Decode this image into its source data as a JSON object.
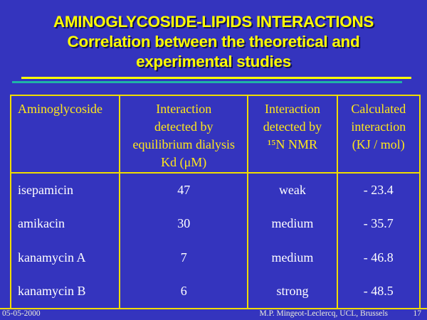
{
  "colors": {
    "bg": "#3434BE",
    "title-yellow": "#FFFF00",
    "border-yellow": "#F0DC00",
    "header-yellow": "#FFE81A",
    "teal": "#1FB3A7",
    "body-text": "#FFFFFF",
    "footer-text": "#EDEDDC"
  },
  "title": {
    "lines": [
      "AMINOGLYCOSIDE-LIPIDS INTERACTIONS",
      "Correlation between the theoretical and",
      "experimental studies"
    ]
  },
  "table": {
    "columns": [
      {
        "lines": [
          "Aminoglycoside"
        ]
      },
      {
        "lines": [
          "Interaction",
          "detected by",
          "equilibrium dialysis",
          "Kd (μM)"
        ]
      },
      {
        "lines": [
          "Interaction",
          "detected by",
          "¹⁵N NMR"
        ]
      },
      {
        "lines": [
          "Calculated",
          "interaction",
          "(KJ / mol)"
        ]
      }
    ],
    "rows": [
      {
        "aminoglycoside": "isepamicin",
        "kd": "47",
        "nmr": "weak",
        "kj": "- 23.4"
      },
      {
        "aminoglycoside": "amikacin",
        "kd": "30",
        "nmr": "medium",
        "kj": "- 35.7"
      },
      {
        "aminoglycoside": "kanamycin A",
        "kd": "7",
        "nmr": "medium",
        "kj": "- 46.8"
      },
      {
        "aminoglycoside": "kanamycin B",
        "kd": "6",
        "nmr": "strong",
        "kj": "- 48.5"
      }
    ]
  },
  "footer": {
    "date": "05-05-2000",
    "credit": "M.P. Mingeot-Leclercq, UCL, Brussels",
    "page": "17"
  }
}
